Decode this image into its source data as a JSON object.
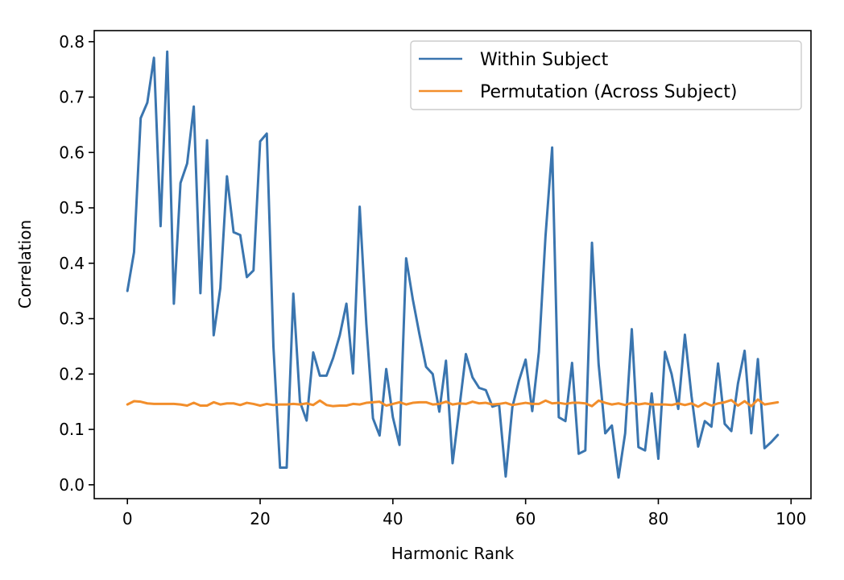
{
  "chart_data": {
    "type": "line",
    "title": "",
    "xlabel": "Harmonic Rank",
    "ylabel": "Correlation",
    "xlim": [
      -5,
      103
    ],
    "ylim": [
      -0.025,
      0.82
    ],
    "xticks": [
      0,
      20,
      40,
      60,
      80,
      100
    ],
    "yticks": [
      0.0,
      0.1,
      0.2,
      0.3,
      0.4,
      0.5,
      0.6,
      0.7,
      0.8
    ],
    "grid": false,
    "legend_position": "top-right",
    "x": [
      0,
      1,
      2,
      3,
      4,
      5,
      6,
      7,
      8,
      9,
      10,
      11,
      12,
      13,
      14,
      15,
      16,
      17,
      18,
      19,
      20,
      21,
      22,
      23,
      24,
      25,
      26,
      27,
      28,
      29,
      30,
      31,
      32,
      33,
      34,
      35,
      36,
      37,
      38,
      39,
      40,
      41,
      42,
      43,
      44,
      45,
      46,
      47,
      48,
      49,
      50,
      51,
      52,
      53,
      54,
      55,
      56,
      57,
      58,
      59,
      60,
      61,
      62,
      63,
      64,
      65,
      66,
      67,
      68,
      69,
      70,
      71,
      72,
      73,
      74,
      75,
      76,
      77,
      78,
      79,
      80,
      81,
      82,
      83,
      84,
      85,
      86,
      87,
      88,
      89,
      90,
      91,
      92,
      93,
      94,
      95,
      96,
      97,
      98
    ],
    "series": [
      {
        "name": "Within Subject",
        "color": "#3a75af",
        "values": [
          0.35,
          0.42,
          0.662,
          0.69,
          0.771,
          0.467,
          0.782,
          0.327,
          0.545,
          0.58,
          0.683,
          0.346,
          0.622,
          0.27,
          0.355,
          0.557,
          0.456,
          0.451,
          0.375,
          0.387,
          0.62,
          0.634,
          0.25,
          0.031,
          0.031,
          0.345,
          0.15,
          0.116,
          0.239,
          0.197,
          0.197,
          0.229,
          0.27,
          0.327,
          0.201,
          0.502,
          0.29,
          0.12,
          0.089,
          0.209,
          0.122,
          0.072,
          0.409,
          0.335,
          0.272,
          0.213,
          0.2,
          0.132,
          0.224,
          0.039,
          0.137,
          0.236,
          0.194,
          0.175,
          0.171,
          0.141,
          0.145,
          0.015,
          0.14,
          0.188,
          0.226,
          0.133,
          0.24,
          0.449,
          0.609,
          0.122,
          0.115,
          0.22,
          0.056,
          0.062,
          0.437,
          0.218,
          0.093,
          0.107,
          0.013,
          0.093,
          0.281,
          0.068,
          0.062,
          0.165,
          0.047,
          0.24,
          0.2,
          0.137,
          0.271,
          0.16,
          0.069,
          0.115,
          0.105,
          0.219,
          0.11,
          0.097,
          0.183,
          0.242,
          0.093,
          0.227,
          0.066,
          0.077,
          0.09
        ]
      },
      {
        "name": "Permutation (Across Subject)",
        "color": "#f28e2b",
        "values": [
          0.145,
          0.151,
          0.15,
          0.147,
          0.146,
          0.146,
          0.146,
          0.146,
          0.145,
          0.143,
          0.148,
          0.143,
          0.143,
          0.149,
          0.145,
          0.147,
          0.147,
          0.144,
          0.148,
          0.146,
          0.143,
          0.146,
          0.144,
          0.145,
          0.145,
          0.146,
          0.145,
          0.147,
          0.144,
          0.152,
          0.144,
          0.142,
          0.143,
          0.143,
          0.146,
          0.145,
          0.148,
          0.149,
          0.15,
          0.143,
          0.146,
          0.149,
          0.145,
          0.148,
          0.149,
          0.149,
          0.145,
          0.146,
          0.15,
          0.145,
          0.147,
          0.146,
          0.15,
          0.147,
          0.148,
          0.145,
          0.146,
          0.148,
          0.144,
          0.146,
          0.148,
          0.146,
          0.146,
          0.152,
          0.147,
          0.148,
          0.146,
          0.148,
          0.148,
          0.147,
          0.142,
          0.152,
          0.148,
          0.145,
          0.147,
          0.144,
          0.148,
          0.145,
          0.147,
          0.145,
          0.145,
          0.145,
          0.144,
          0.147,
          0.144,
          0.147,
          0.141,
          0.148,
          0.143,
          0.147,
          0.149,
          0.153,
          0.143,
          0.151,
          0.142,
          0.154,
          0.145,
          0.147,
          0.149
        ]
      }
    ]
  }
}
